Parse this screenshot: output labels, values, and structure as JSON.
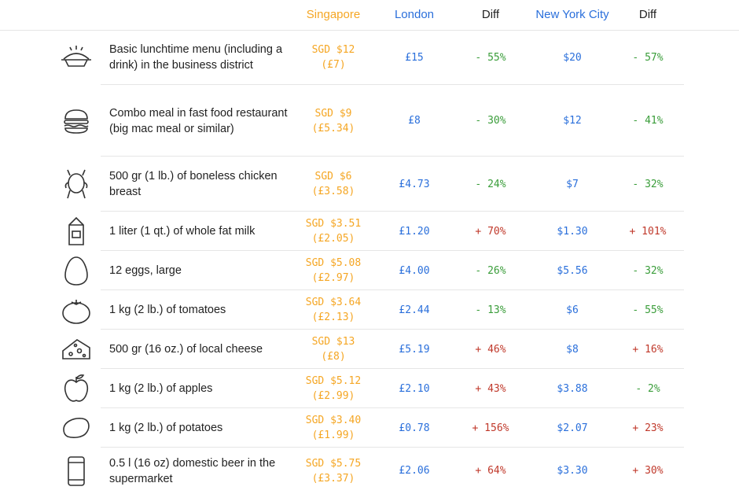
{
  "header": {
    "singapore": "Singapore",
    "london": "London",
    "diff1": "Diff",
    "nyc": "New York City",
    "diff2": "Diff"
  },
  "colors": {
    "singapore": "#f5a623",
    "city": "#2a6fdb",
    "cheaper": "#3a9d3a",
    "pricier": "#c0392b"
  },
  "rows": [
    {
      "icon": "lunch-plate-icon",
      "label": "Basic lunchtime menu (including a drink) in the business district",
      "sgd": "SGD $12",
      "gbp": "(£7)",
      "london": "£15",
      "diff_london": "- 55%",
      "nyc": "$20",
      "diff_nyc": "- 57%"
    },
    {
      "icon": "burger-icon",
      "label": "Combo meal in fast food restaurant (big mac meal or similar)",
      "sgd": "SGD $9",
      "gbp": "(£5.34)",
      "london": "£8",
      "diff_london": "- 30%",
      "nyc": "$12",
      "diff_nyc": "- 41%"
    },
    {
      "icon": "chicken-icon",
      "label": "500 gr (1 lb.) of boneless chicken breast",
      "sgd": "SGD $6",
      "gbp": "(£3.58)",
      "london": "£4.73",
      "diff_london": "- 24%",
      "nyc": "$7",
      "diff_nyc": "- 32%"
    },
    {
      "icon": "milk-carton-icon",
      "label": "1 liter (1 qt.) of whole fat milk",
      "sgd": "SGD $3.51",
      "gbp": "(£2.05)",
      "london": "£1.20",
      "diff_london": "+ 70%",
      "nyc": "$1.30",
      "diff_nyc": "+ 101%"
    },
    {
      "icon": "egg-icon",
      "label": "12 eggs, large",
      "sgd": "SGD $5.08",
      "gbp": "(£2.97)",
      "london": "£4.00",
      "diff_london": "- 26%",
      "nyc": "$5.56",
      "diff_nyc": "- 32%"
    },
    {
      "icon": "tomato-icon",
      "label": "1 kg (2 lb.) of tomatoes",
      "sgd": "SGD $3.64",
      "gbp": "(£2.13)",
      "london": "£2.44",
      "diff_london": "- 13%",
      "nyc": "$6",
      "diff_nyc": "- 55%"
    },
    {
      "icon": "cheese-icon",
      "label": "500 gr (16 oz.) of local cheese",
      "sgd": "SGD $13",
      "gbp": "(£8)",
      "london": "£5.19",
      "diff_london": "+ 46%",
      "nyc": "$8",
      "diff_nyc": "+ 16%"
    },
    {
      "icon": "apple-icon",
      "label": "1 kg (2 lb.) of apples",
      "sgd": "SGD $5.12",
      "gbp": "(£2.99)",
      "london": "£2.10",
      "diff_london": "+ 43%",
      "nyc": "$3.88",
      "diff_nyc": "- 2%"
    },
    {
      "icon": "potato-icon",
      "label": "1 kg (2 lb.) of potatoes",
      "sgd": "SGD $3.40",
      "gbp": "(£1.99)",
      "london": "£0.78",
      "diff_london": "+ 156%",
      "nyc": "$2.07",
      "diff_nyc": "+ 23%"
    },
    {
      "icon": "beer-can-icon",
      "label": "0.5 l (16 oz) domestic beer in the supermarket",
      "sgd": "SGD $5.75",
      "gbp": "(£3.37)",
      "london": "£2.06",
      "diff_london": "+ 64%",
      "nyc": "$3.30",
      "diff_nyc": "+ 30%"
    }
  ]
}
